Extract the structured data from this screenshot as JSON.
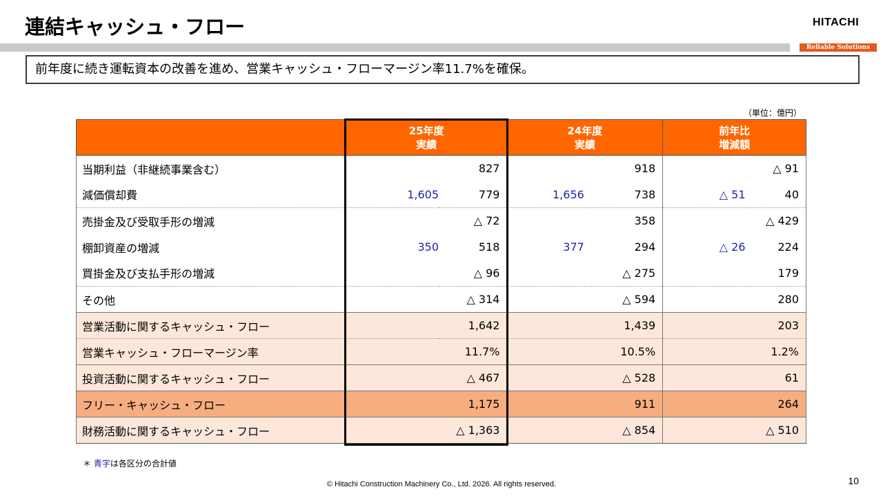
{
  "title": "連結キャッシュ・フロー",
  "logo": "HITACHI",
  "tagline": "Reliable Solutions",
  "summary": "前年度に続き運転資本の改善を進め、営業キャッシュ・フローマージン率11.7%を確保。",
  "unit": "（単位：億円）",
  "header": {
    "col1_line1": "25年度",
    "col1_line2": "実績",
    "col2_line1": "24年度",
    "col2_line2": "実績",
    "col3_line1": "前年比",
    "col3_line2": "増減額"
  },
  "rows": [
    {
      "label": "当期利益（非継続事業含む）",
      "sub1": "",
      "main1": "827",
      "sub2": "",
      "main2": "918",
      "sub3": "",
      "main3": "△ 91"
    },
    {
      "label": "減価償却費",
      "sub1": "1,605",
      "main1": "779",
      "sub2": "1,656",
      "main2": "738",
      "sub3": "△ 51",
      "main3": "40"
    },
    {
      "label": "売掛金及び受取手形の増減",
      "sub1": "",
      "main1": "△ 72",
      "sub2": "",
      "main2": "358",
      "sub3": "",
      "main3": "△ 429"
    },
    {
      "label": "棚卸資産の増減",
      "sub1": "350",
      "main1": "518",
      "sub2": "377",
      "main2": "294",
      "sub3": "△ 26",
      "main3": "224"
    },
    {
      "label": "買掛金及び支払手形の増減",
      "sub1": "",
      "main1": "△ 96",
      "sub2": "",
      "main2": "△ 275",
      "sub3": "",
      "main3": "179"
    },
    {
      "label": "その他",
      "sub1": "",
      "main1": "△ 314",
      "sub2": "",
      "main2": "△ 594",
      "sub3": "",
      "main3": "280"
    },
    {
      "label": "営業活動に関するキャッシュ・フロー",
      "sub1": "",
      "main1": "1,642",
      "sub2": "",
      "main2": "1,439",
      "sub3": "",
      "main3": "203"
    },
    {
      "label": "営業キャッシュ・フローマージン率",
      "sub1": "",
      "main1": "11.7%",
      "sub2": "",
      "main2": "10.5%",
      "sub3": "",
      "main3": "1.2%"
    },
    {
      "label": "投資活動に関するキャッシュ・フロー",
      "sub1": "",
      "main1": "△ 467",
      "sub2": "",
      "main2": "△ 528",
      "sub3": "",
      "main3": "61"
    },
    {
      "label": "フリー・キャッシュ・フロー",
      "sub1": "",
      "main1": "1,175",
      "sub2": "",
      "main2": "911",
      "sub3": "",
      "main3": "264"
    },
    {
      "label": "財務活動に関するキャッシュ・フロー",
      "sub1": "",
      "main1": "△ 1,363",
      "sub2": "",
      "main2": "△ 854",
      "sub3": "",
      "main3": "△ 510"
    }
  ],
  "note": {
    "prefix": "＊ ",
    "blue": "青字",
    "suffix": "は各区分の合計値"
  },
  "copyright": "© Hitachi Construction Machinery Co., Ltd. 2026. All rights reserved.",
  "page_number": "10",
  "colors": {
    "header_orange": "#ff6600",
    "highlight_light": "#fde7da",
    "highlight_dark": "#f6ad80",
    "subtotal_blue": "#1f1fb4"
  }
}
